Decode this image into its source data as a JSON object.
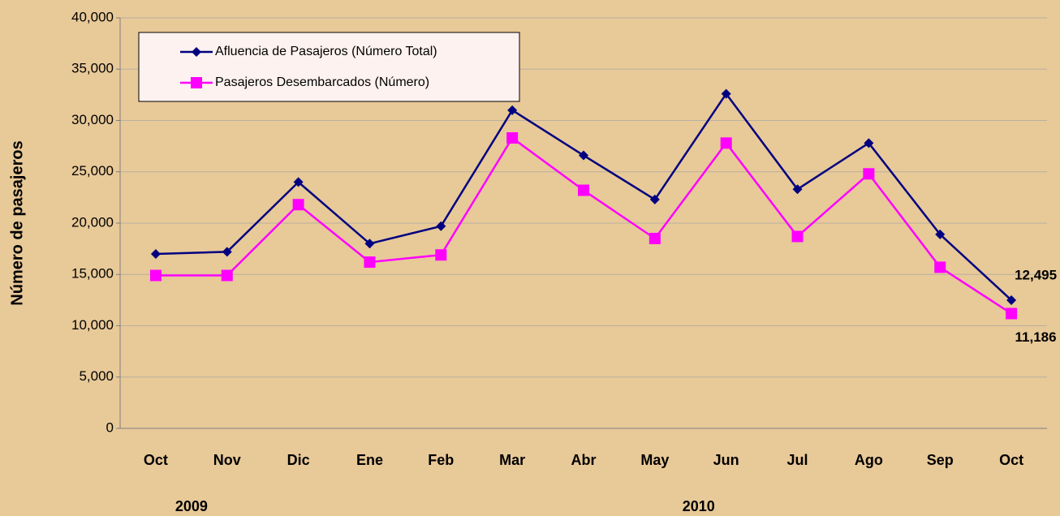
{
  "chart_data": {
    "type": "line",
    "y_label": "Número de pasajeros",
    "categories": [
      "Oct",
      "Nov",
      "Dic",
      "Ene",
      "Feb",
      "Mar",
      "Abr",
      "May",
      "Jun",
      "Jul",
      "Ago",
      "Sep",
      "Oct"
    ],
    "year_labels": [
      "2009",
      "2010"
    ],
    "series": [
      {
        "name": "Afluencia de Pasajeros (Número Total)",
        "color": "#000080",
        "marker": "diamond",
        "values": [
          17000,
          17200,
          24000,
          18000,
          19700,
          31000,
          26600,
          22300,
          32600,
          23300,
          27800,
          18900,
          12495
        ],
        "value_labels": [
          null,
          null,
          null,
          null,
          null,
          null,
          null,
          null,
          null,
          null,
          null,
          null,
          "12,495"
        ]
      },
      {
        "name": "Pasajeros Desembarcados (Número)",
        "color": "#ff00ff",
        "marker": "square",
        "values": [
          14900,
          14900,
          21800,
          16200,
          16900,
          28300,
          23200,
          18500,
          27800,
          18700,
          24800,
          15700,
          11186
        ],
        "value_labels": [
          null,
          null,
          null,
          null,
          null,
          null,
          null,
          null,
          null,
          null,
          null,
          null,
          "11,186"
        ]
      }
    ],
    "ylim": [
      0,
      40000
    ],
    "yticks": [
      0,
      {
        "value": 5000,
        "label": "5,000"
      },
      {
        "value": 10000,
        "label": "10,000"
      },
      {
        "value": 15000,
        "label": "15,000"
      },
      {
        "value": 20000,
        "label": "20,000"
      },
      {
        "value": 25000,
        "label": "25,000"
      },
      {
        "value": 30000,
        "label": "30,000"
      },
      {
        "value": 35000,
        "label": "35,000"
      },
      {
        "value": 40000,
        "label": "40,000"
      }
    ],
    "grid": true,
    "legend": "upper left"
  }
}
